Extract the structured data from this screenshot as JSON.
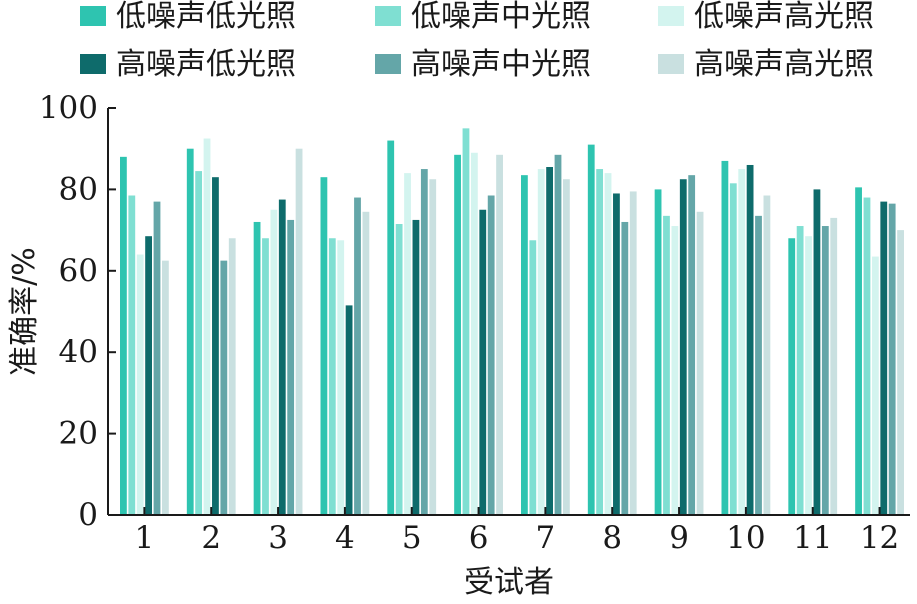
{
  "chart_data": {
    "type": "bar",
    "title": "",
    "xlabel": "受试者",
    "ylabel": "准确率/%",
    "ylim": [
      0,
      100
    ],
    "yticks": [
      "0",
      "20",
      "40",
      "60",
      "80",
      "100"
    ],
    "categories": [
      "1",
      "2",
      "3",
      "4",
      "5",
      "6",
      "7",
      "8",
      "9",
      "10",
      "11",
      "12"
    ],
    "grid": false,
    "legend_position": "top",
    "series": [
      {
        "name": "低噪声低光照",
        "color": "#2ec4b0",
        "values": [
          88,
          90,
          72,
          83,
          92,
          88.5,
          83.5,
          91,
          80,
          87,
          68,
          80.5
        ]
      },
      {
        "name": "低噪声中光照",
        "color": "#7fdfd2",
        "values": [
          78.5,
          84.5,
          68,
          68,
          71.5,
          95,
          67.5,
          85,
          73.5,
          81.5,
          71,
          78
        ]
      },
      {
        "name": "低噪声高光照",
        "color": "#d3f4ef",
        "values": [
          64,
          92.5,
          75,
          67.5,
          84,
          89,
          85,
          84,
          71,
          85,
          68.5,
          63.5
        ]
      },
      {
        "name": "高噪声低光照",
        "color": "#0e6b6b",
        "values": [
          68.5,
          83,
          77.5,
          51.5,
          72.5,
          75,
          85.5,
          79,
          82.5,
          86,
          80,
          77
        ]
      },
      {
        "name": "高噪声中光照",
        "color": "#64a6a8",
        "values": [
          77,
          62.5,
          72.5,
          78,
          85,
          78.5,
          88.5,
          72,
          83.5,
          73.5,
          71,
          76.5
        ]
      },
      {
        "name": "高噪声高光照",
        "color": "#c9e0e0",
        "values": [
          62.5,
          68,
          90,
          74.5,
          82.5,
          88.5,
          82.5,
          79.5,
          74.5,
          78.5,
          73,
          70
        ]
      }
    ]
  }
}
